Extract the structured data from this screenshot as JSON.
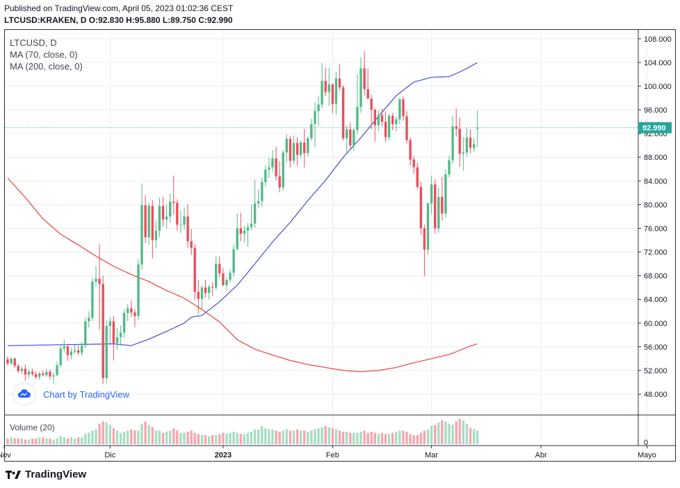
{
  "header": {
    "published": "Published on TradingView.com, April 05, 2023 01:02:36 CEST",
    "ohlc": "LTCUSD:KRAKEN, D O:92.830 H:95.880 L:89.750 C:92.990"
  },
  "legend": {
    "symbol": "LTCUSD, D",
    "ma70": "MA (70, close, 0)",
    "ma200": "MA (200, close, 0)",
    "volume": "Volume (20)"
  },
  "watermark": "Chart by TradingView",
  "brand": "TradingView",
  "colors": {
    "up": "#53b987",
    "down": "#eb4d5c",
    "vol_up": "#a9dcc3",
    "vol_down": "#f5a6ae",
    "ma70": "#3f4dd4",
    "ma200": "#e8423f",
    "last_price_bg": "#26a69a",
    "grid": "#e9ecf0"
  },
  "chart_data": {
    "type": "candlestick",
    "title": "LTCUSD:KRAKEN, D",
    "price_ticks": [
      "48.000",
      "52.000",
      "56.000",
      "60.000",
      "64.000",
      "68.000",
      "72.000",
      "76.000",
      "80.000",
      "84.000",
      "88.000",
      "92.000",
      "96.000",
      "100.000",
      "104.000",
      "108.000"
    ],
    "ylim": [
      44.6,
      109.5
    ],
    "last_price": 92.99,
    "last_price_label": "92.990",
    "volume_tick": "0",
    "time_labels": [
      {
        "label": "Nov",
        "day": -1
      },
      {
        "label": "Dic",
        "day": 29
      },
      {
        "label": "2023",
        "day": 61
      },
      {
        "label": "Feb",
        "day": 92
      },
      {
        "label": "Mar",
        "day": 120
      },
      {
        "label": "Abr",
        "day": 151
      },
      {
        "label": "Mayo",
        "day": 181
      }
    ],
    "candles": [
      {
        "d": 0,
        "o": 53.9,
        "h": 54.4,
        "l": 52.8,
        "c": 53.2
      },
      {
        "d": 1,
        "o": 53.2,
        "h": 54.3,
        "l": 52.9,
        "c": 54.0
      },
      {
        "d": 2,
        "o": 54.0,
        "h": 54.2,
        "l": 52.4,
        "c": 52.8
      },
      {
        "d": 3,
        "o": 52.8,
        "h": 53.1,
        "l": 51.6,
        "c": 51.9
      },
      {
        "d": 4,
        "o": 51.9,
        "h": 52.7,
        "l": 51.4,
        "c": 52.3
      },
      {
        "d": 5,
        "o": 52.3,
        "h": 53.0,
        "l": 50.3,
        "c": 51.3
      },
      {
        "d": 6,
        "o": 51.3,
        "h": 52.1,
        "l": 50.8,
        "c": 51.8
      },
      {
        "d": 7,
        "o": 51.8,
        "h": 52.3,
        "l": 51.0,
        "c": 51.4
      },
      {
        "d": 8,
        "o": 51.4,
        "h": 51.9,
        "l": 50.5,
        "c": 50.9
      },
      {
        "d": 9,
        "o": 50.9,
        "h": 51.8,
        "l": 50.4,
        "c": 51.5
      },
      {
        "d": 10,
        "o": 51.5,
        "h": 52.0,
        "l": 51.0,
        "c": 51.2
      },
      {
        "d": 11,
        "o": 51.2,
        "h": 52.3,
        "l": 50.9,
        "c": 51.8
      },
      {
        "d": 12,
        "o": 51.8,
        "h": 52.2,
        "l": 50.5,
        "c": 51.0
      },
      {
        "d": 13,
        "o": 51.0,
        "h": 51.6,
        "l": 49.4,
        "c": 51.2
      },
      {
        "d": 14,
        "o": 51.2,
        "h": 53.5,
        "l": 51.0,
        "c": 52.9
      },
      {
        "d": 15,
        "o": 52.9,
        "h": 56.2,
        "l": 52.5,
        "c": 55.7
      },
      {
        "d": 16,
        "o": 55.7,
        "h": 57.2,
        "l": 55.0,
        "c": 56.1
      },
      {
        "d": 17,
        "o": 56.1,
        "h": 56.5,
        "l": 53.6,
        "c": 54.6
      },
      {
        "d": 18,
        "o": 54.6,
        "h": 55.9,
        "l": 53.9,
        "c": 55.2
      },
      {
        "d": 19,
        "o": 55.2,
        "h": 56.4,
        "l": 54.8,
        "c": 55.4
      },
      {
        "d": 20,
        "o": 55.4,
        "h": 56.2,
        "l": 54.6,
        "c": 55.0
      },
      {
        "d": 21,
        "o": 55.0,
        "h": 56.8,
        "l": 54.5,
        "c": 56.2
      },
      {
        "d": 22,
        "o": 56.2,
        "h": 61.0,
        "l": 55.8,
        "c": 60.3
      },
      {
        "d": 23,
        "o": 60.3,
        "h": 62.0,
        "l": 59.2,
        "c": 60.9
      },
      {
        "d": 24,
        "o": 60.9,
        "h": 67.7,
        "l": 60.3,
        "c": 67.0
      },
      {
        "d": 25,
        "o": 67.0,
        "h": 69.7,
        "l": 66.2,
        "c": 67.5
      },
      {
        "d": 26,
        "o": 67.5,
        "h": 73.3,
        "l": 58.9,
        "c": 66.6
      },
      {
        "d": 27,
        "o": 66.6,
        "h": 68.0,
        "l": 48.6,
        "c": 50.7
      },
      {
        "d": 28,
        "o": 50.7,
        "h": 60.5,
        "l": 49.8,
        "c": 59.5
      },
      {
        "d": 29,
        "o": 59.5,
        "h": 61.0,
        "l": 56.6,
        "c": 60.3
      },
      {
        "d": 30,
        "o": 60.3,
        "h": 61.2,
        "l": 53.7,
        "c": 56.6
      },
      {
        "d": 31,
        "o": 56.6,
        "h": 59.2,
        "l": 55.5,
        "c": 57.6
      },
      {
        "d": 32,
        "o": 57.6,
        "h": 59.6,
        "l": 56.2,
        "c": 58.4
      },
      {
        "d": 33,
        "o": 58.4,
        "h": 62.3,
        "l": 57.5,
        "c": 61.7
      },
      {
        "d": 34,
        "o": 61.7,
        "h": 63.2,
        "l": 60.3,
        "c": 62.5
      },
      {
        "d": 35,
        "o": 62.5,
        "h": 63.8,
        "l": 61.0,
        "c": 61.8
      },
      {
        "d": 36,
        "o": 61.8,
        "h": 62.4,
        "l": 59.3,
        "c": 61.2
      },
      {
        "d": 37,
        "o": 61.2,
        "h": 70.8,
        "l": 60.5,
        "c": 69.9
      },
      {
        "d": 38,
        "o": 69.9,
        "h": 83.6,
        "l": 69.0,
        "c": 79.9
      },
      {
        "d": 39,
        "o": 79.9,
        "h": 81.6,
        "l": 73.5,
        "c": 74.5
      },
      {
        "d": 40,
        "o": 74.5,
        "h": 80.3,
        "l": 73.2,
        "c": 79.8
      },
      {
        "d": 41,
        "o": 79.8,
        "h": 80.7,
        "l": 70.9,
        "c": 74.0
      },
      {
        "d": 42,
        "o": 74.0,
        "h": 77.3,
        "l": 72.6,
        "c": 75.6
      },
      {
        "d": 43,
        "o": 75.6,
        "h": 81.2,
        "l": 74.5,
        "c": 79.8
      },
      {
        "d": 44,
        "o": 79.8,
        "h": 81.3,
        "l": 76.3,
        "c": 77.5
      },
      {
        "d": 45,
        "o": 77.5,
        "h": 80.1,
        "l": 76.0,
        "c": 78.0
      },
      {
        "d": 46,
        "o": 78.0,
        "h": 81.9,
        "l": 76.9,
        "c": 80.5
      },
      {
        "d": 47,
        "o": 80.5,
        "h": 84.9,
        "l": 78.3,
        "c": 80.3
      },
      {
        "d": 48,
        "o": 80.3,
        "h": 80.9,
        "l": 75.6,
        "c": 76.6
      },
      {
        "d": 49,
        "o": 76.6,
        "h": 78.9,
        "l": 75.2,
        "c": 76.6
      },
      {
        "d": 50,
        "o": 76.6,
        "h": 79.5,
        "l": 75.8,
        "c": 78.0
      },
      {
        "d": 51,
        "o": 78.0,
        "h": 80.0,
        "l": 72.7,
        "c": 73.8
      },
      {
        "d": 52,
        "o": 73.8,
        "h": 75.9,
        "l": 71.5,
        "c": 72.7
      },
      {
        "d": 53,
        "o": 72.7,
        "h": 73.4,
        "l": 63.9,
        "c": 65.3
      },
      {
        "d": 54,
        "o": 65.3,
        "h": 67.3,
        "l": 61.6,
        "c": 64.1
      },
      {
        "d": 55,
        "o": 64.1,
        "h": 66.4,
        "l": 62.4,
        "c": 66.0
      },
      {
        "d": 56,
        "o": 66.0,
        "h": 67.3,
        "l": 64.3,
        "c": 65.1
      },
      {
        "d": 57,
        "o": 65.1,
        "h": 66.5,
        "l": 64.0,
        "c": 66.1
      },
      {
        "d": 58,
        "o": 66.1,
        "h": 66.9,
        "l": 64.6,
        "c": 66.0
      },
      {
        "d": 59,
        "o": 66.0,
        "h": 71.3,
        "l": 65.6,
        "c": 70.0
      },
      {
        "d": 60,
        "o": 70.0,
        "h": 71.2,
        "l": 67.7,
        "c": 68.4
      },
      {
        "d": 61,
        "o": 68.4,
        "h": 69.3,
        "l": 66.3,
        "c": 66.4
      },
      {
        "d": 62,
        "o": 66.4,
        "h": 67.8,
        "l": 65.5,
        "c": 67.3
      },
      {
        "d": 63,
        "o": 67.3,
        "h": 69.1,
        "l": 66.8,
        "c": 68.5
      },
      {
        "d": 64,
        "o": 68.5,
        "h": 73.3,
        "l": 67.8,
        "c": 72.5
      },
      {
        "d": 65,
        "o": 72.5,
        "h": 78.5,
        "l": 72.2,
        "c": 76.0
      },
      {
        "d": 66,
        "o": 76.0,
        "h": 78.6,
        "l": 73.8,
        "c": 75.1
      },
      {
        "d": 67,
        "o": 75.1,
        "h": 76.4,
        "l": 73.6,
        "c": 75.6
      },
      {
        "d": 68,
        "o": 75.6,
        "h": 76.9,
        "l": 72.9,
        "c": 76.2
      },
      {
        "d": 69,
        "o": 76.2,
        "h": 80.0,
        "l": 75.7,
        "c": 76.8
      },
      {
        "d": 70,
        "o": 76.8,
        "h": 84.2,
        "l": 76.1,
        "c": 80.2
      },
      {
        "d": 71,
        "o": 80.2,
        "h": 82.5,
        "l": 79.4,
        "c": 80.6
      },
      {
        "d": 72,
        "o": 80.6,
        "h": 84.5,
        "l": 79.6,
        "c": 83.8
      },
      {
        "d": 73,
        "o": 83.8,
        "h": 86.6,
        "l": 83.0,
        "c": 85.9
      },
      {
        "d": 74,
        "o": 85.9,
        "h": 88.0,
        "l": 84.5,
        "c": 86.3
      },
      {
        "d": 75,
        "o": 86.3,
        "h": 89.2,
        "l": 85.5,
        "c": 87.8
      },
      {
        "d": 76,
        "o": 87.8,
        "h": 89.8,
        "l": 84.1,
        "c": 84.8
      },
      {
        "d": 77,
        "o": 84.8,
        "h": 87.3,
        "l": 82.1,
        "c": 82.9
      },
      {
        "d": 78,
        "o": 82.9,
        "h": 89.2,
        "l": 82.4,
        "c": 88.8
      },
      {
        "d": 79,
        "o": 88.8,
        "h": 91.9,
        "l": 87.1,
        "c": 91.1
      },
      {
        "d": 80,
        "o": 91.1,
        "h": 91.6,
        "l": 86.3,
        "c": 87.4
      },
      {
        "d": 81,
        "o": 87.4,
        "h": 91.7,
        "l": 86.9,
        "c": 90.4
      },
      {
        "d": 82,
        "o": 90.4,
        "h": 91.4,
        "l": 86.6,
        "c": 88.4
      },
      {
        "d": 83,
        "o": 88.4,
        "h": 90.8,
        "l": 87.8,
        "c": 90.5
      },
      {
        "d": 84,
        "o": 90.5,
        "h": 92.8,
        "l": 86.3,
        "c": 88.7
      },
      {
        "d": 85,
        "o": 88.7,
        "h": 91.5,
        "l": 88.1,
        "c": 91.2
      },
      {
        "d": 86,
        "o": 91.2,
        "h": 94.5,
        "l": 90.8,
        "c": 93.6
      },
      {
        "d": 87,
        "o": 93.6,
        "h": 97.3,
        "l": 89.7,
        "c": 95.8
      },
      {
        "d": 88,
        "o": 95.8,
        "h": 98.4,
        "l": 93.3,
        "c": 96.9
      },
      {
        "d": 89,
        "o": 96.9,
        "h": 103.9,
        "l": 96.3,
        "c": 100.9
      },
      {
        "d": 90,
        "o": 100.9,
        "h": 103.1,
        "l": 98.3,
        "c": 99.0
      },
      {
        "d": 91,
        "o": 99.0,
        "h": 103.1,
        "l": 96.7,
        "c": 100.3
      },
      {
        "d": 92,
        "o": 100.3,
        "h": 100.5,
        "l": 95.4,
        "c": 97.0
      },
      {
        "d": 93,
        "o": 97.0,
        "h": 102.4,
        "l": 95.2,
        "c": 101.3
      },
      {
        "d": 94,
        "o": 101.3,
        "h": 103.7,
        "l": 99.3,
        "c": 99.8
      },
      {
        "d": 95,
        "o": 99.8,
        "h": 100.2,
        "l": 90.8,
        "c": 91.2
      },
      {
        "d": 96,
        "o": 91.2,
        "h": 93.4,
        "l": 88.7,
        "c": 92.7
      },
      {
        "d": 97,
        "o": 92.7,
        "h": 93.9,
        "l": 89.4,
        "c": 90.0
      },
      {
        "d": 98,
        "o": 90.0,
        "h": 92.9,
        "l": 89.1,
        "c": 92.6
      },
      {
        "d": 99,
        "o": 92.6,
        "h": 102.0,
        "l": 91.9,
        "c": 96.5
      },
      {
        "d": 100,
        "o": 96.5,
        "h": 104.9,
        "l": 95.5,
        "c": 103.0
      },
      {
        "d": 101,
        "o": 103.0,
        "h": 105.9,
        "l": 98.4,
        "c": 99.5
      },
      {
        "d": 102,
        "o": 99.5,
        "h": 103.0,
        "l": 97.8,
        "c": 97.9
      },
      {
        "d": 103,
        "o": 97.9,
        "h": 98.5,
        "l": 92.7,
        "c": 96.0
      },
      {
        "d": 104,
        "o": 96.0,
        "h": 96.3,
        "l": 90.7,
        "c": 93.4
      },
      {
        "d": 105,
        "o": 93.4,
        "h": 95.9,
        "l": 92.4,
        "c": 95.1
      },
      {
        "d": 106,
        "o": 95.1,
        "h": 96.2,
        "l": 93.2,
        "c": 94.0
      },
      {
        "d": 107,
        "o": 94.0,
        "h": 95.6,
        "l": 90.6,
        "c": 91.4
      },
      {
        "d": 108,
        "o": 91.4,
        "h": 95.3,
        "l": 90.8,
        "c": 95.0
      },
      {
        "d": 109,
        "o": 95.0,
        "h": 95.5,
        "l": 92.6,
        "c": 93.6
      },
      {
        "d": 110,
        "o": 93.6,
        "h": 94.9,
        "l": 92.4,
        "c": 94.4
      },
      {
        "d": 111,
        "o": 94.4,
        "h": 98.0,
        "l": 93.6,
        "c": 97.8
      },
      {
        "d": 112,
        "o": 97.8,
        "h": 98.3,
        "l": 94.2,
        "c": 94.9
      },
      {
        "d": 113,
        "o": 94.9,
        "h": 95.8,
        "l": 90.3,
        "c": 90.9
      },
      {
        "d": 114,
        "o": 90.9,
        "h": 91.4,
        "l": 86.6,
        "c": 87.6
      },
      {
        "d": 115,
        "o": 87.6,
        "h": 88.2,
        "l": 85.2,
        "c": 86.3
      },
      {
        "d": 116,
        "o": 86.3,
        "h": 87.1,
        "l": 82.6,
        "c": 83.0
      },
      {
        "d": 117,
        "o": 83.0,
        "h": 83.9,
        "l": 74.9,
        "c": 76.0
      },
      {
        "d": 118,
        "o": 76.0,
        "h": 76.6,
        "l": 67.9,
        "c": 72.4
      },
      {
        "d": 119,
        "o": 72.4,
        "h": 80.4,
        "l": 71.5,
        "c": 80.2
      },
      {
        "d": 120,
        "o": 80.2,
        "h": 84.9,
        "l": 78.4,
        "c": 83.4
      },
      {
        "d": 121,
        "o": 83.4,
        "h": 84.3,
        "l": 75.1,
        "c": 76.0
      },
      {
        "d": 122,
        "o": 76.0,
        "h": 82.8,
        "l": 75.3,
        "c": 81.3
      },
      {
        "d": 123,
        "o": 81.3,
        "h": 84.7,
        "l": 77.3,
        "c": 78.5
      },
      {
        "d": 124,
        "o": 78.5,
        "h": 86.0,
        "l": 77.8,
        "c": 85.1
      },
      {
        "d": 125,
        "o": 85.1,
        "h": 88.3,
        "l": 84.6,
        "c": 87.5
      },
      {
        "d": 126,
        "o": 87.5,
        "h": 95.0,
        "l": 86.9,
        "c": 93.2
      },
      {
        "d": 127,
        "o": 93.2,
        "h": 96.2,
        "l": 91.5,
        "c": 92.8
      },
      {
        "d": 128,
        "o": 92.8,
        "h": 94.7,
        "l": 86.4,
        "c": 88.6
      },
      {
        "d": 129,
        "o": 88.6,
        "h": 91.4,
        "l": 85.7,
        "c": 88.8
      },
      {
        "d": 130,
        "o": 88.8,
        "h": 92.9,
        "l": 88.1,
        "c": 91.3
      },
      {
        "d": 131,
        "o": 91.3,
        "h": 92.7,
        "l": 88.7,
        "c": 89.6
      },
      {
        "d": 132,
        "o": 89.6,
        "h": 91.2,
        "l": 88.9,
        "c": 90.2
      },
      {
        "d": 133,
        "o": 92.83,
        "h": 95.88,
        "l": 89.75,
        "c": 92.99
      }
    ],
    "ma70": [
      [
        0,
        56.2
      ],
      [
        10,
        56.3
      ],
      [
        20,
        56.4
      ],
      [
        30,
        56.5
      ],
      [
        35,
        56.2
      ],
      [
        40,
        57.3
      ],
      [
        45,
        58.6
      ],
      [
        50,
        60.0
      ],
      [
        52,
        61.0
      ],
      [
        55,
        61.3
      ],
      [
        60,
        63.6
      ],
      [
        65,
        66.4
      ],
      [
        70,
        70.0
      ],
      [
        75,
        73.7
      ],
      [
        80,
        77.0
      ],
      [
        85,
        80.7
      ],
      [
        90,
        84.1
      ],
      [
        95,
        88.0
      ],
      [
        100,
        91.3
      ],
      [
        105,
        94.9
      ],
      [
        110,
        98.4
      ],
      [
        115,
        100.7
      ],
      [
        120,
        101.5
      ],
      [
        125,
        101.6
      ],
      [
        128,
        102.4
      ],
      [
        131,
        103.3
      ],
      [
        133,
        104.0
      ]
    ],
    "ma200": [
      [
        0,
        84.5
      ],
      [
        5,
        81.2
      ],
      [
        10,
        77.6
      ],
      [
        15,
        75.0
      ],
      [
        20,
        73.2
      ],
      [
        25,
        71.3
      ],
      [
        30,
        69.6
      ],
      [
        35,
        68.2
      ],
      [
        40,
        67.0
      ],
      [
        45,
        65.5
      ],
      [
        50,
        64.2
      ],
      [
        55,
        62.3
      ],
      [
        60,
        60.2
      ],
      [
        65,
        57.2
      ],
      [
        70,
        55.6
      ],
      [
        75,
        54.6
      ],
      [
        80,
        53.7
      ],
      [
        85,
        53.0
      ],
      [
        90,
        52.5
      ],
      [
        95,
        52.0
      ],
      [
        100,
        51.8
      ],
      [
        105,
        52.0
      ],
      [
        110,
        52.5
      ],
      [
        115,
        53.3
      ],
      [
        120,
        54.0
      ],
      [
        125,
        54.7
      ],
      [
        128,
        55.4
      ],
      [
        130,
        55.9
      ],
      [
        133,
        56.5
      ]
    ],
    "volume": [
      5,
      6,
      5,
      5,
      5,
      4,
      4,
      5,
      5,
      6,
      6,
      5,
      5,
      4,
      5,
      7,
      6,
      5,
      6,
      5,
      6,
      6,
      9,
      10,
      12,
      13,
      18,
      20,
      19,
      17,
      14,
      12,
      10,
      11,
      12,
      13,
      12,
      12,
      18,
      20,
      17,
      15,
      12,
      12,
      10,
      11,
      12,
      14,
      12,
      10,
      10,
      11,
      12,
      10,
      9,
      8,
      8,
      7,
      8,
      8,
      9,
      10,
      9,
      10,
      11,
      10,
      9,
      9,
      10,
      11,
      13,
      13,
      16,
      14,
      13,
      13,
      12,
      11,
      12,
      13,
      12,
      12,
      13,
      12,
      12,
      11,
      12,
      13,
      14,
      15,
      16,
      15,
      14,
      13,
      12,
      11,
      11,
      10,
      10,
      10,
      11,
      12,
      10,
      11,
      10,
      9,
      10,
      9,
      9,
      10,
      11,
      12,
      12,
      11,
      9,
      8,
      8,
      10,
      12,
      13,
      16,
      17,
      19,
      21,
      20,
      18,
      17,
      20,
      22,
      21,
      18,
      14,
      13,
      12
    ]
  }
}
